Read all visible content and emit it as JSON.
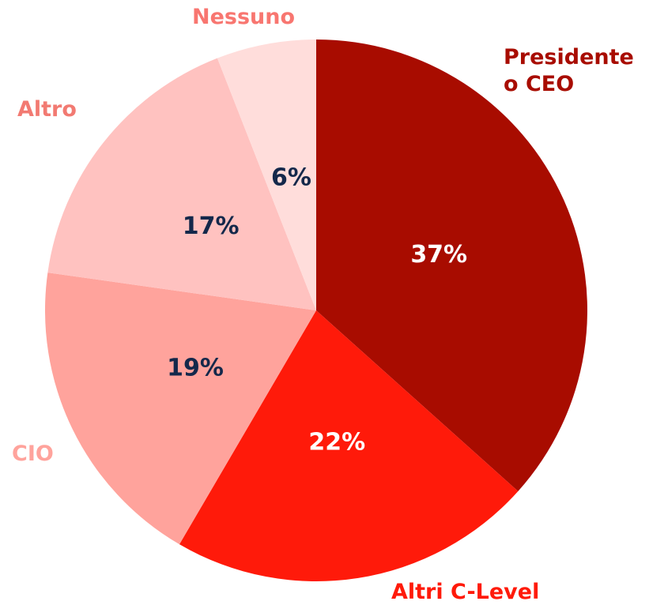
{
  "chart_data": {
    "type": "pie",
    "categories": [
      "Presidente o CEO",
      "Altri C-Level",
      "CIO",
      "Altro",
      "Nessuno"
    ],
    "values": [
      37,
      22,
      19,
      17,
      6
    ],
    "value_labels": [
      "37%",
      "22%",
      "19%",
      "17%",
      "6%"
    ],
    "colors": [
      "#a80c00",
      "#ff1a0a",
      "#ffa39c",
      "#ffc2c0",
      "#ffdddb"
    ],
    "label_colors": [
      "#a80c00",
      "#ff1a0a",
      "#ffa39c",
      "#f27a72",
      "#f87670"
    ],
    "value_label_colors": [
      "#ffffff",
      "#ffffff",
      "#14284b",
      "#14284b",
      "#14284b"
    ]
  }
}
